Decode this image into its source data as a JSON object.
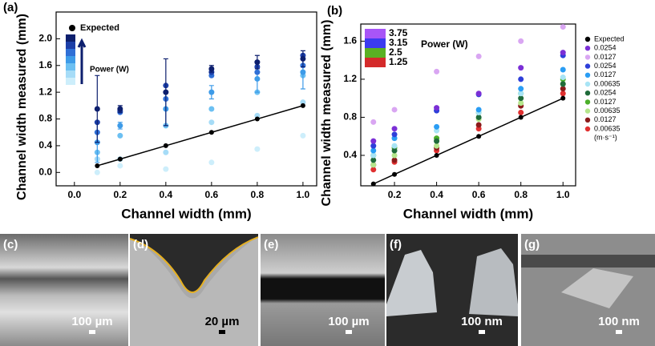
{
  "chart_data": [
    {
      "type": "scatter",
      "panel": "(a)",
      "x_label": "Channel width (mm)",
      "y_label": "Channel width measured (mm)",
      "xlim": [
        -0.08,
        1.06
      ],
      "ylim": [
        -0.2,
        2.4
      ],
      "xticks": [
        {
          "value": 0,
          "label": "0.0"
        },
        0.2,
        0.4,
        0.6,
        0.8,
        {
          "value": 1,
          "label": "1.0"
        }
      ],
      "yticks": [
        {
          "value": 0,
          "label": "0.0"
        },
        0.4,
        0.8,
        1.2,
        1.6,
        {
          "value": 2,
          "label": "2.0"
        }
      ],
      "x": [
        0.1,
        0.2,
        0.4,
        0.6,
        0.8,
        1.0
      ],
      "power_legend": {
        "title": "Power (W)"
      },
      "series": [
        {
          "name": "Expected",
          "color": "#000000",
          "line": true,
          "values": [
            0.1,
            0.2,
            0.4,
            0.6,
            0.8,
            1.0
          ]
        },
        {
          "color": "#0d1f6e",
          "values": [
            0.95,
            0.95,
            1.2,
            1.55,
            1.65,
            1.7
          ],
          "errors": [
            0.5,
            0.05,
            0.5,
            0.05,
            0.1,
            0.12
          ]
        },
        {
          "color": "#1c3fa8",
          "values": [
            0.75,
            0.92,
            1.3,
            1.5,
            1.58,
            1.75
          ]
        },
        {
          "color": "#2f6fd6",
          "values": [
            0.6,
            0.9,
            1.1,
            1.45,
            1.5,
            1.6
          ]
        },
        {
          "color": "#3d9be8",
          "values": [
            0.45,
            0.7,
            0.95,
            1.2,
            1.4,
            1.5
          ],
          "errors": [
            0.3,
            0.05,
            0.25,
            0.1,
            0.2,
            0.25
          ]
        },
        {
          "color": "#6cc0f2",
          "values": [
            0.3,
            0.55,
            0.7,
            0.95,
            1.2,
            1.45
          ]
        },
        {
          "color": "#a6dcf7",
          "values": [
            0.2,
            0.2,
            0.3,
            0.75,
            0.85,
            1.05
          ]
        },
        {
          "color": "#cdeefb",
          "values": [
            0.0,
            0.1,
            0.05,
            0.15,
            0.35,
            0.55
          ]
        }
      ]
    },
    {
      "type": "scatter",
      "panel": "(b)",
      "x_label": "Channel width (mm)",
      "y_label": "Channel width measured (mm)",
      "xlim": [
        0.04,
        1.06
      ],
      "ylim": [
        0.08,
        1.78
      ],
      "xticks": [
        0.2,
        0.4,
        0.6,
        0.8,
        {
          "value": 1,
          "label": "1.0"
        }
      ],
      "yticks": [
        0.4,
        0.8,
        1.2,
        1.6
      ],
      "x": [
        0.1,
        0.2,
        0.4,
        0.6,
        0.8,
        1.0
      ],
      "legend_unit": "(m·s⁻¹)",
      "power_legend": {
        "title": "Power (W)",
        "items": [
          {
            "label": "3.75",
            "color": "#a855f7"
          },
          {
            "label": "3.15",
            "color": "#3b3bf0"
          },
          {
            "label": "2.5",
            "color": "#5ab023"
          },
          {
            "label": "1.25",
            "color": "#d42a2a"
          }
        ]
      },
      "series": [
        {
          "name": "Expected",
          "color": "#000000",
          "line": true,
          "values": [
            0.1,
            0.2,
            0.4,
            0.6,
            0.8,
            1.0
          ]
        },
        {
          "name": "0.0254",
          "color": "#7b2fd6",
          "values": [
            0.55,
            0.68,
            0.9,
            1.05,
            1.32,
            1.48
          ]
        },
        {
          "name": "0.0127",
          "color": "#d9a6f2",
          "values": [
            0.75,
            0.88,
            1.28,
            1.44,
            1.6,
            1.75
          ]
        },
        {
          "name": "0.0254",
          "color": "#2e3fd9",
          "values": [
            0.5,
            0.62,
            0.87,
            1.04,
            1.2,
            1.45
          ]
        },
        {
          "name": "0.0127",
          "color": "#2a9df4",
          "values": [
            0.45,
            0.58,
            0.7,
            0.88,
            1.1,
            1.3
          ]
        },
        {
          "name": "0.00635",
          "color": "#a8e4f5",
          "values": [
            0.4,
            0.5,
            0.66,
            0.85,
            1.05,
            1.22
          ]
        },
        {
          "name": "0.0254",
          "color": "#1f6b3a",
          "values": [
            0.35,
            0.45,
            0.55,
            0.8,
            1.0,
            1.15
          ]
        },
        {
          "name": "0.0127",
          "color": "#4caf2a",
          "values": [
            0.4,
            0.48,
            0.58,
            0.85,
            1.05,
            1.2
          ]
        },
        {
          "name": "0.00635",
          "color": "#b5e68c",
          "values": [
            0.3,
            0.4,
            0.5,
            0.78,
            0.95,
            1.15
          ]
        },
        {
          "name": "0.0127",
          "color": "#8b1a1a",
          "values": [
            0.3,
            0.35,
            0.48,
            0.72,
            0.92,
            1.1
          ]
        },
        {
          "name": "0.00635",
          "color": "#e03030",
          "values": [
            0.25,
            0.33,
            0.45,
            0.68,
            0.85,
            1.05
          ]
        }
      ]
    }
  ],
  "image_panels": [
    {
      "label": "(c)",
      "scale": "100 µm"
    },
    {
      "label": "(d)",
      "scale": "20 µm"
    },
    {
      "label": "(e)",
      "scale": "100 µm"
    },
    {
      "label": "(f)",
      "scale": "100 nm"
    },
    {
      "label": "(g)",
      "scale": "100 nm"
    }
  ]
}
